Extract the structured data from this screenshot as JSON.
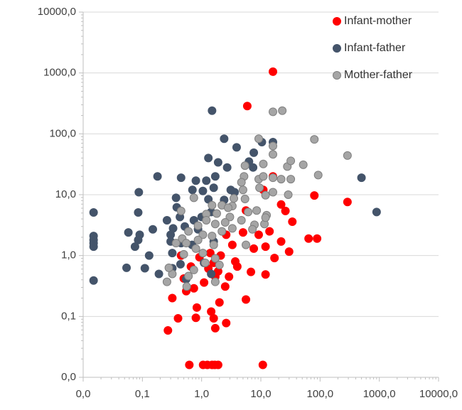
{
  "chart_data": {
    "type": "scatter",
    "xscale": "log",
    "yscale": "log",
    "xlim": [
      0.01,
      10000
    ],
    "ylim": [
      0.01,
      10000
    ],
    "xticks": [
      {
        "value": 0.01,
        "label": "0,0"
      },
      {
        "value": 0.1,
        "label": "0,1"
      },
      {
        "value": 1,
        "label": "1,0"
      },
      {
        "value": 10,
        "label": "10,0"
      },
      {
        "value": 100,
        "label": "100,0"
      },
      {
        "value": 1000,
        "label": "1000,0"
      },
      {
        "value": 10000,
        "label": "10000,0"
      }
    ],
    "yticks": [
      {
        "value": 0.01,
        "label": "0,0"
      },
      {
        "value": 0.1,
        "label": "0,1"
      },
      {
        "value": 1,
        "label": "1,0"
      },
      {
        "value": 10,
        "label": "10,0"
      },
      {
        "value": 100,
        "label": "100,0"
      },
      {
        "value": 1000,
        "label": "1000,0"
      },
      {
        "value": 10000,
        "label": "10000,0"
      }
    ],
    "grid": true,
    "legend": "top-right",
    "series": [
      {
        "name": "Infant-mother",
        "color": "#ff0000",
        "x": [
          16,
          5.9,
          16,
          80,
          290,
          11,
          22,
          26,
          34,
          89,
          14,
          9.2,
          5,
          2.6,
          3.3,
          7.6,
          12,
          22,
          30,
          17,
          12,
          6.8,
          4,
          3.7,
          2.1,
          1.6,
          1.3,
          0.92,
          0.66,
          0.45,
          0.5,
          0.74,
          0.55,
          1.1,
          1.7,
          2.5,
          2.9,
          1.9,
          1.4,
          0.32,
          0.4,
          0.27,
          0.83,
          0.8,
          1.45,
          1.6,
          1.7,
          2.0,
          2.6,
          5.6,
          0.62,
          1.06,
          1.25,
          1.5,
          1.67,
          1.9,
          10.8,
          64,
          5.6
        ],
        "values": [
          1050,
          286,
          20,
          9.7,
          7.6,
          12,
          6.9,
          5.4,
          3.6,
          1.9,
          2.5,
          2.2,
          2.4,
          2.2,
          1.5,
          1.3,
          1.4,
          1.7,
          1.16,
          0.91,
          0.49,
          0.54,
          0.66,
          0.8,
          1.0,
          0.76,
          0.61,
          0.94,
          0.66,
          1.0,
          0.42,
          0.29,
          0.26,
          0.36,
          0.45,
          0.31,
          0.45,
          0.55,
          1.1,
          0.2,
          0.093,
          0.059,
          0.14,
          0.095,
          0.12,
          0.093,
          0.064,
          0.17,
          0.078,
          0.19,
          0.016,
          0.016,
          0.016,
          0.016,
          0.016,
          0.016,
          0.016,
          1.9,
          5.5
        ]
      },
      {
        "name": "Infant-father",
        "color": "#44546a",
        "x": [
          0.015,
          0.015,
          0.015,
          0.015,
          0.015,
          0.015,
          1.5,
          2.4,
          10.4,
          16,
          7.6,
          3.9,
          1.3,
          1.9,
          2.7,
          1.7,
          6.3,
          0.18,
          0.45,
          0.8,
          1.2,
          1.6,
          3.1,
          7.4,
          500,
          900,
          0.087,
          0.37,
          0.7,
          1.05,
          1.3,
          2.4,
          3.6,
          0.085,
          0.058,
          0.09,
          0.085,
          0.075,
          0.13,
          0.054,
          0.11,
          0.19,
          0.15,
          0.26,
          0.33,
          0.43,
          0.3,
          0.52,
          0.74,
          0.32,
          0.3,
          0.45,
          0.69,
          0.32,
          0.44,
          0.55,
          1.0,
          1.45,
          0.87,
          1.6,
          1.1,
          1.45,
          0.38
        ],
        "values": [
          5.1,
          2.1,
          1.8,
          1.6,
          1.4,
          0.39,
          240,
          83,
          73,
          73,
          49,
          60,
          40,
          34,
          28,
          20,
          35,
          20,
          19,
          17,
          17,
          13,
          12,
          28,
          19,
          5.2,
          11,
          8.9,
          12,
          11.5,
          8.4,
          8.2,
          11,
          5.1,
          2.4,
          2.2,
          1.8,
          1.4,
          1.0,
          0.63,
          0.62,
          0.5,
          2.7,
          3.8,
          2.8,
          4.3,
          2.2,
          3.0,
          3.8,
          1.1,
          1.7,
          1.6,
          1.5,
          0.62,
          0.72,
          0.41,
          4.3,
          5.2,
          2.7,
          1.7,
          0.76,
          0.5,
          6.2
        ]
      },
      {
        "name": "Mother-father",
        "color": "#a5a5a5",
        "x": [
          16,
          23,
          80,
          290,
          9.2,
          16,
          93,
          16,
          52,
          28,
          11,
          32,
          5.4,
          5.2,
          4.7,
          9.2,
          11,
          16,
          22,
          32,
          16,
          29,
          12,
          9.5,
          5,
          3.5,
          5.4,
          3.3,
          2.2,
          1.5,
          0.74,
          0.45,
          1.2,
          1.8,
          2.8,
          6.1,
          8.5,
          12.5,
          11.5,
          7.8,
          4.7,
          3.0,
          2.5,
          1.7,
          1.2,
          0.87,
          0.6,
          0.47,
          0.37,
          1.05,
          1.5,
          2.2,
          3.3,
          1.6,
          1.05,
          1.15,
          1.7,
          0.8,
          0.55,
          0.5,
          0.74,
          0.6,
          0.32,
          0.28,
          0.26,
          0.56,
          1.7,
          2.0,
          0.87,
          7.2,
          5.6,
          12
        ],
        "values": [
          230,
          240,
          81,
          44,
          83,
          63,
          21,
          46,
          31,
          29,
          32,
          36,
          30,
          20,
          16,
          18,
          20,
          19,
          18,
          18,
          11,
          10,
          9.8,
          13,
          12,
          8.7,
          8.5,
          6.5,
          6.7,
          6.7,
          8.9,
          5.4,
          4.8,
          4.9,
          6.1,
          5.2,
          5.5,
          4.6,
          3.3,
          3.2,
          3.8,
          4.3,
          3.5,
          3.3,
          3.8,
          3.1,
          2.5,
          1.9,
          1.6,
          2.2,
          2.1,
          2.5,
          2.8,
          1.5,
          1.1,
          0.76,
          0.9,
          1.3,
          1.6,
          1.05,
          0.58,
          0.46,
          0.5,
          0.63,
          0.37,
          0.31,
          0.37,
          0.7,
          1.8,
          2.7,
          1.5,
          4.2
        ]
      }
    ]
  }
}
